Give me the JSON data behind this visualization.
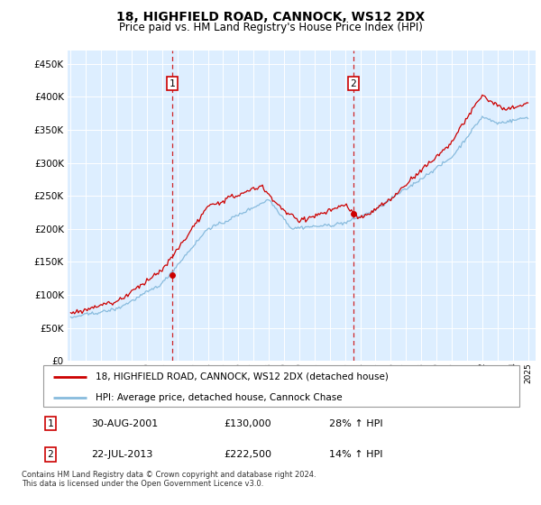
{
  "title": "18, HIGHFIELD ROAD, CANNOCK, WS12 2DX",
  "subtitle": "Price paid vs. HM Land Registry's House Price Index (HPI)",
  "legend_line1": "18, HIGHFIELD ROAD, CANNOCK, WS12 2DX (detached house)",
  "legend_line2": "HPI: Average price, detached house, Cannock Chase",
  "sale1_date": "30-AUG-2001",
  "sale1_price": "£130,000",
  "sale1_hpi": "28% ↑ HPI",
  "sale1_year": 2001.67,
  "sale1_value": 130000,
  "sale2_date": "22-JUL-2013",
  "sale2_price": "£222,500",
  "sale2_hpi": "14% ↑ HPI",
  "sale2_year": 2013.55,
  "sale2_value": 222500,
  "red_color": "#cc0000",
  "blue_color": "#88bbdd",
  "background_color": "#ddeeff",
  "footer": "Contains HM Land Registry data © Crown copyright and database right 2024.\nThis data is licensed under the Open Government Licence v3.0.",
  "ylim": [
    0,
    470000
  ],
  "yticks": [
    0,
    50000,
    100000,
    150000,
    200000,
    250000,
    300000,
    350000,
    400000,
    450000
  ],
  "xlim_start": 1994.8,
  "xlim_end": 2025.5,
  "hpi_seed": 42,
  "red_seed": 123
}
